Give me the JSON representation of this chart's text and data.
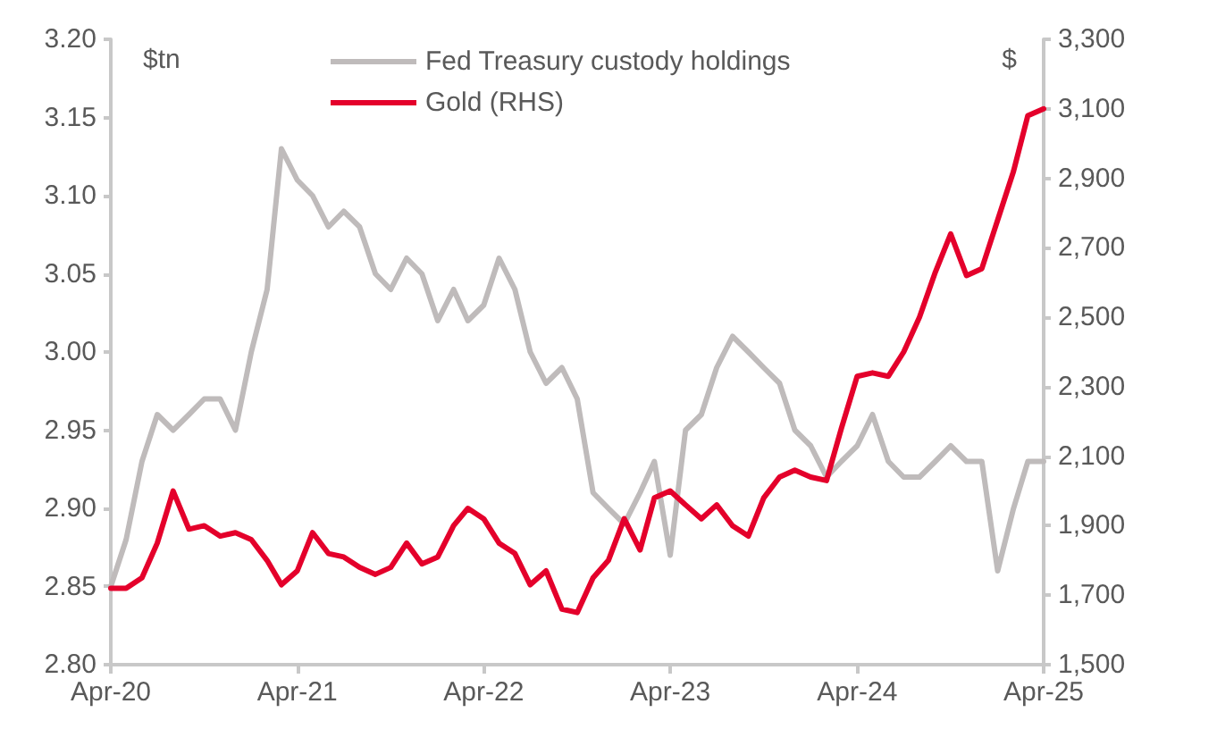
{
  "chart_data": {
    "type": "line",
    "ylabel": "$tn",
    "y2label": "$",
    "x": [
      "2020-04",
      "2020-05",
      "2020-06",
      "2020-07",
      "2020-08",
      "2020-09",
      "2020-10",
      "2020-11",
      "2020-12",
      "2021-01",
      "2021-02",
      "2021-03",
      "2021-04",
      "2021-05",
      "2021-06",
      "2021-07",
      "2021-08",
      "2021-09",
      "2021-10",
      "2021-11",
      "2021-12",
      "2022-01",
      "2022-02",
      "2022-03",
      "2022-04",
      "2022-05",
      "2022-06",
      "2022-07",
      "2022-08",
      "2022-09",
      "2022-10",
      "2022-11",
      "2022-12",
      "2023-01",
      "2023-02",
      "2023-03",
      "2023-04",
      "2023-05",
      "2023-06",
      "2023-07",
      "2023-08",
      "2023-09",
      "2023-10",
      "2023-11",
      "2023-12",
      "2024-01",
      "2024-02",
      "2024-03",
      "2024-04",
      "2024-05",
      "2024-06",
      "2024-07",
      "2024-08",
      "2024-09",
      "2024-10",
      "2024-11",
      "2024-12",
      "2025-01",
      "2025-02",
      "2025-03",
      "2025-04"
    ],
    "series": [
      {
        "name": "Fed Treasury custody holdings",
        "color": "#bfbbbb",
        "values": [
          2.85,
          2.88,
          2.93,
          2.96,
          2.95,
          2.96,
          2.97,
          2.97,
          2.95,
          3.0,
          3.04,
          3.13,
          3.11,
          3.1,
          3.08,
          3.09,
          3.08,
          3.05,
          3.04,
          3.06,
          3.05,
          3.02,
          3.04,
          3.02,
          3.03,
          3.06,
          3.04,
          3.0,
          2.98,
          2.99,
          2.97,
          2.91,
          2.9,
          2.89,
          2.91,
          2.93,
          2.87,
          2.95,
          2.96,
          2.99,
          3.01,
          3.0,
          2.99,
          2.98,
          2.95,
          2.94,
          2.92,
          2.93,
          2.94,
          2.96,
          2.93,
          2.92,
          2.92,
          2.93,
          2.94,
          2.93,
          2.93,
          2.86,
          2.9,
          2.93,
          2.93
        ]
      },
      {
        "name": "Gold (RHS)",
        "color": "#e4002b",
        "axis": "y2",
        "values": [
          1720,
          1720,
          1750,
          1850,
          2000,
          1890,
          1900,
          1870,
          1880,
          1860,
          1800,
          1730,
          1770,
          1880,
          1820,
          1810,
          1780,
          1760,
          1780,
          1850,
          1790,
          1810,
          1900,
          1950,
          1920,
          1850,
          1820,
          1730,
          1770,
          1660,
          1650,
          1750,
          1800,
          1920,
          1830,
          1980,
          2000,
          1960,
          1920,
          1960,
          1900,
          1870,
          1980,
          2040,
          2060,
          2040,
          2030,
          2180,
          2330,
          2340,
          2330,
          2400,
          2500,
          2630,
          2740,
          2620,
          2640,
          2780,
          2920,
          3080,
          3100
        ]
      }
    ],
    "xlim": [
      "2020-04",
      "2025-04"
    ],
    "xticks": [
      {
        "value": "2020-04",
        "label": "Apr-20"
      },
      {
        "value": "2021-04",
        "label": "Apr-21"
      },
      {
        "value": "2022-04",
        "label": "Apr-22"
      },
      {
        "value": "2023-04",
        "label": "Apr-23"
      },
      {
        "value": "2024-04",
        "label": "Apr-24"
      },
      {
        "value": "2025-04",
        "label": "Apr-25"
      }
    ],
    "ylim": [
      2.8,
      3.2
    ],
    "yticks": [
      {
        "value": 2.8,
        "label": "2.80"
      },
      {
        "value": 2.85,
        "label": "2.85"
      },
      {
        "value": 2.9,
        "label": "2.90"
      },
      {
        "value": 2.95,
        "label": "2.95"
      },
      {
        "value": 3.0,
        "label": "3.00"
      },
      {
        "value": 3.05,
        "label": "3.05"
      },
      {
        "value": 3.1,
        "label": "3.10"
      },
      {
        "value": 3.15,
        "label": "3.15"
      },
      {
        "value": 3.2,
        "label": "3.20"
      }
    ],
    "y2lim": [
      1500,
      3300
    ],
    "y2ticks": [
      {
        "value": 1500,
        "label": "1,500"
      },
      {
        "value": 1700,
        "label": "1,700"
      },
      {
        "value": 1900,
        "label": "1,900"
      },
      {
        "value": 2100,
        "label": "2,100"
      },
      {
        "value": 2300,
        "label": "2,300"
      },
      {
        "value": 2500,
        "label": "2,500"
      },
      {
        "value": 2700,
        "label": "2,700"
      },
      {
        "value": 2900,
        "label": "2,900"
      },
      {
        "value": 3100,
        "label": "3,100"
      },
      {
        "value": 3300,
        "label": "3,300"
      }
    ],
    "legend": "top",
    "grid": false,
    "marker": "none",
    "line_style": "solid"
  }
}
